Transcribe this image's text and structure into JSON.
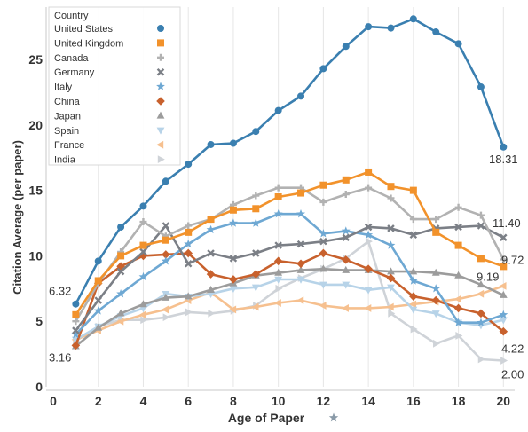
{
  "chart_data": {
    "type": "line",
    "xlabel": "Age of Paper",
    "ylabel": "Citation Average (per paper)",
    "xlim": [
      0,
      20.5
    ],
    "ylim": [
      0,
      29
    ],
    "x_ticks": [
      0,
      2,
      4,
      6,
      8,
      10,
      12,
      14,
      16,
      18,
      20
    ],
    "y_ticks": [
      0,
      5,
      10,
      15,
      20,
      25
    ],
    "legend": {
      "title": "Country",
      "position": "top-left"
    },
    "x": [
      1,
      2,
      3,
      4,
      5,
      6,
      7,
      8,
      9,
      10,
      11,
      12,
      13,
      14,
      15,
      16,
      17,
      18,
      19,
      20
    ],
    "series": [
      {
        "name": "United States",
        "color": "#3a7fb0",
        "marker": "circle",
        "values": [
          6.32,
          9.6,
          12.2,
          13.8,
          15.7,
          17.0,
          18.5,
          18.6,
          19.5,
          21.1,
          22.2,
          24.3,
          26.0,
          27.5,
          27.4,
          28.1,
          27.1,
          26.2,
          22.9,
          18.31
        ]
      },
      {
        "name": "United Kingdom",
        "color": "#f2922b",
        "marker": "square",
        "values": [
          5.5,
          8.1,
          10.0,
          10.8,
          11.2,
          11.8,
          12.8,
          13.5,
          13.6,
          14.5,
          14.8,
          15.4,
          15.8,
          16.4,
          15.3,
          15.0,
          11.8,
          10.8,
          9.8,
          9.19
        ]
      },
      {
        "name": "Canada",
        "color": "#b2b2b2",
        "marker": "plus",
        "values": [
          5.0,
          7.9,
          10.3,
          12.6,
          11.5,
          12.3,
          12.8,
          13.9,
          14.6,
          15.2,
          15.2,
          14.1,
          14.7,
          15.2,
          14.4,
          12.8,
          12.8,
          13.7,
          13.1,
          9.72
        ]
      },
      {
        "name": "Germany",
        "color": "#7b7f86",
        "marker": "cross",
        "values": [
          4.3,
          6.6,
          8.8,
          10.3,
          12.3,
          9.4,
          10.2,
          9.8,
          10.2,
          10.8,
          10.9,
          11.1,
          11.4,
          12.2,
          12.1,
          11.6,
          12.1,
          12.2,
          12.3,
          11.4
        ]
      },
      {
        "name": "Italy",
        "color": "#6ea8d3",
        "marker": "star",
        "values": [
          4.0,
          5.8,
          7.1,
          8.4,
          9.6,
          10.9,
          12.0,
          12.5,
          12.5,
          13.2,
          13.2,
          11.7,
          11.9,
          11.6,
          10.8,
          8.1,
          7.5,
          4.9,
          4.9,
          5.5
        ]
      },
      {
        "name": "China",
        "color": "#c8612d",
        "marker": "diamond",
        "values": [
          3.16,
          7.9,
          9.2,
          10.0,
          10.1,
          10.2,
          8.6,
          8.2,
          8.6,
          9.6,
          9.4,
          10.2,
          9.7,
          9.0,
          8.3,
          6.9,
          6.6,
          6.0,
          5.6,
          4.22
        ]
      },
      {
        "name": "Japan",
        "color": "#9c9c9c",
        "marker": "triangle-up",
        "values": [
          3.1,
          4.5,
          5.6,
          6.3,
          6.8,
          6.9,
          7.4,
          7.9,
          8.5,
          8.7,
          8.9,
          9.0,
          8.9,
          8.9,
          8.8,
          8.8,
          8.7,
          8.5,
          7.8,
          7.0
        ]
      },
      {
        "name": "Spain",
        "color": "#b7d3e8",
        "marker": "triangle-down",
        "values": [
          3.6,
          4.6,
          5.4,
          6.0,
          7.1,
          6.9,
          7.1,
          7.5,
          7.6,
          8.2,
          8.2,
          7.8,
          7.8,
          7.4,
          7.6,
          5.9,
          5.6,
          4.9,
          4.7,
          5.1
        ]
      },
      {
        "name": "France",
        "color": "#f6c08f",
        "marker": "triangle-left",
        "values": [
          3.6,
          4.3,
          5.0,
          5.5,
          5.9,
          6.6,
          7.2,
          5.9,
          6.1,
          6.4,
          6.6,
          6.2,
          6.0,
          6.0,
          6.1,
          6.3,
          6.5,
          6.7,
          7.1,
          7.7
        ]
      },
      {
        "name": "India",
        "color": "#cfd3d8",
        "marker": "triangle-right",
        "values": [
          3.5,
          4.6,
          5.1,
          5.1,
          5.3,
          5.7,
          5.6,
          5.8,
          6.2,
          7.5,
          8.3,
          9.0,
          9.8,
          11.1,
          5.6,
          4.4,
          3.3,
          3.9,
          2.1,
          2.0
        ]
      }
    ],
    "data_labels": [
      {
        "text": "6.32",
        "x": 1,
        "y": 6.32
      },
      {
        "text": "3.16",
        "x": 1,
        "y": 3.16
      },
      {
        "text": "18.31",
        "x": 20,
        "y": 18.31
      },
      {
        "text": "11.40",
        "x": 20,
        "y": 11.4
      },
      {
        "text": "9.72",
        "x": 20,
        "y": 9.72
      },
      {
        "text": "9.19",
        "x": 20,
        "y": 9.19
      },
      {
        "text": "4.22",
        "x": 20,
        "y": 4.22
      },
      {
        "text": "2.00",
        "x": 20,
        "y": 2.0
      }
    ],
    "grid": {
      "x": true,
      "y": false
    }
  }
}
